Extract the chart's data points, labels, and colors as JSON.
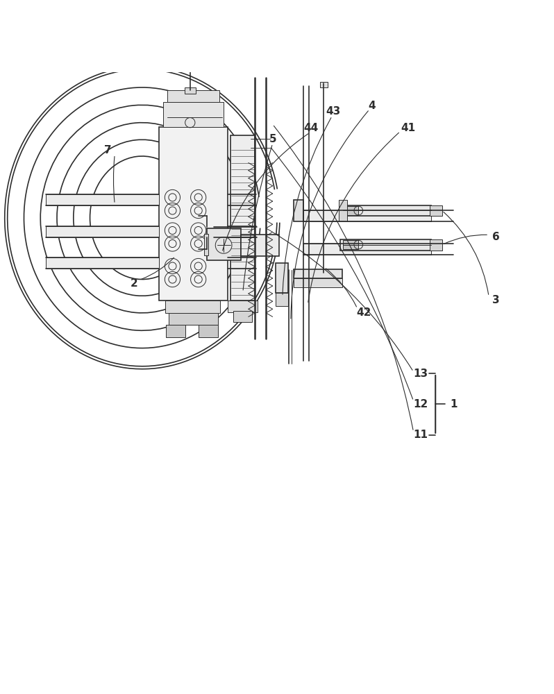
{
  "bg_color": "#ffffff",
  "line_color": "#2d2d2d",
  "label_color": "#1a1a1a",
  "figsize": [
    7.98,
    10.0
  ],
  "dpi": 100
}
